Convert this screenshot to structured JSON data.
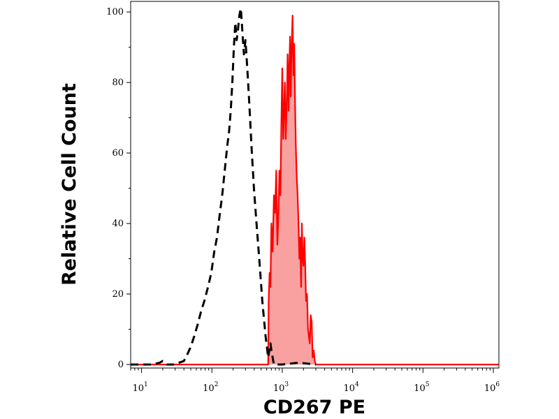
{
  "chart_data": {
    "type": "area",
    "xlabel": "CD267 PE",
    "ylabel": "Relative Cell Count",
    "x_scale": "log",
    "xlim": [
      7,
      1200000
    ],
    "ylim": [
      -1,
      103
    ],
    "grid": false,
    "x_ticks": [
      {
        "value": 10,
        "base": "10",
        "exp": "1"
      },
      {
        "value": 100,
        "base": "10",
        "exp": "2"
      },
      {
        "value": 1000,
        "base": "10",
        "exp": "3"
      },
      {
        "value": 10000,
        "base": "10",
        "exp": "4"
      },
      {
        "value": 100000,
        "base": "10",
        "exp": "5"
      },
      {
        "value": 1000000,
        "base": "10",
        "exp": "6"
      }
    ],
    "y_ticks": [
      0,
      20,
      40,
      60,
      80,
      100
    ],
    "series": [
      {
        "style": "dashed",
        "color": "#000000",
        "filled": false,
        "points": [
          [
            7,
            0
          ],
          [
            14,
            0
          ],
          [
            18,
            0.5
          ],
          [
            20,
            1
          ],
          [
            23,
            0
          ],
          [
            30,
            0
          ],
          [
            34,
            0.5
          ],
          [
            40,
            1
          ],
          [
            45,
            3
          ],
          [
            50,
            5
          ],
          [
            56,
            8
          ],
          [
            62,
            11
          ],
          [
            70,
            15
          ],
          [
            78,
            18
          ],
          [
            88,
            22
          ],
          [
            98,
            26
          ],
          [
            108,
            32
          ],
          [
            118,
            36
          ],
          [
            128,
            42
          ],
          [
            140,
            48
          ],
          [
            152,
            55
          ],
          [
            165,
            62
          ],
          [
            175,
            66
          ],
          [
            185,
            72
          ],
          [
            195,
            80
          ],
          [
            205,
            90
          ],
          [
            215,
            97
          ],
          [
            225,
            92
          ],
          [
            235,
            95
          ],
          [
            245,
            99
          ],
          [
            258,
            101
          ],
          [
            270,
            95
          ],
          [
            285,
            88
          ],
          [
            300,
            92
          ],
          [
            318,
            84
          ],
          [
            340,
            74
          ],
          [
            365,
            62
          ],
          [
            395,
            50
          ],
          [
            430,
            40
          ],
          [
            470,
            30
          ],
          [
            520,
            18
          ],
          [
            580,
            8
          ],
          [
            630,
            2
          ],
          [
            680,
            6
          ],
          [
            700,
            4
          ],
          [
            760,
            0
          ],
          [
            1000,
            0
          ],
          [
            1700,
            0.5
          ],
          [
            3000,
            0
          ]
        ]
      },
      {
        "style": "solid",
        "color": "#ff0000",
        "fill_color": "#f9a0a0",
        "filled": true,
        "points": [
          [
            7,
            0
          ],
          [
            600,
            0
          ],
          [
            630,
            0
          ],
          [
            640,
            18
          ],
          [
            660,
            26
          ],
          [
            680,
            22
          ],
          [
            700,
            40
          ],
          [
            730,
            32
          ],
          [
            760,
            48
          ],
          [
            790,
            43
          ],
          [
            820,
            55
          ],
          [
            850,
            34
          ],
          [
            880,
            42
          ],
          [
            910,
            55
          ],
          [
            940,
            48
          ],
          [
            970,
            68
          ],
          [
            1000,
            84
          ],
          [
            1030,
            64
          ],
          [
            1060,
            72
          ],
          [
            1090,
            80
          ],
          [
            1120,
            64
          ],
          [
            1160,
            75
          ],
          [
            1190,
            88
          ],
          [
            1230,
            72
          ],
          [
            1260,
            85
          ],
          [
            1290,
            93
          ],
          [
            1320,
            76
          ],
          [
            1350,
            88
          ],
          [
            1400,
            99
          ],
          [
            1440,
            82
          ],
          [
            1480,
            91
          ],
          [
            1520,
            74
          ],
          [
            1560,
            62
          ],
          [
            1600,
            54
          ],
          [
            1650,
            48
          ],
          [
            1700,
            40
          ],
          [
            1750,
            30
          ],
          [
            1800,
            36
          ],
          [
            1850,
            22
          ],
          [
            1900,
            40
          ],
          [
            1950,
            30
          ],
          [
            2000,
            28
          ],
          [
            2060,
            36
          ],
          [
            2120,
            28
          ],
          [
            2180,
            18
          ],
          [
            2250,
            20
          ],
          [
            2320,
            10
          ],
          [
            2390,
            8
          ],
          [
            2460,
            6
          ],
          [
            2540,
            14
          ],
          [
            2620,
            12
          ],
          [
            2700,
            2
          ],
          [
            2800,
            4
          ],
          [
            2900,
            1
          ],
          [
            3000,
            0
          ],
          [
            20000,
            0
          ],
          [
            1200000,
            0
          ]
        ]
      }
    ]
  }
}
